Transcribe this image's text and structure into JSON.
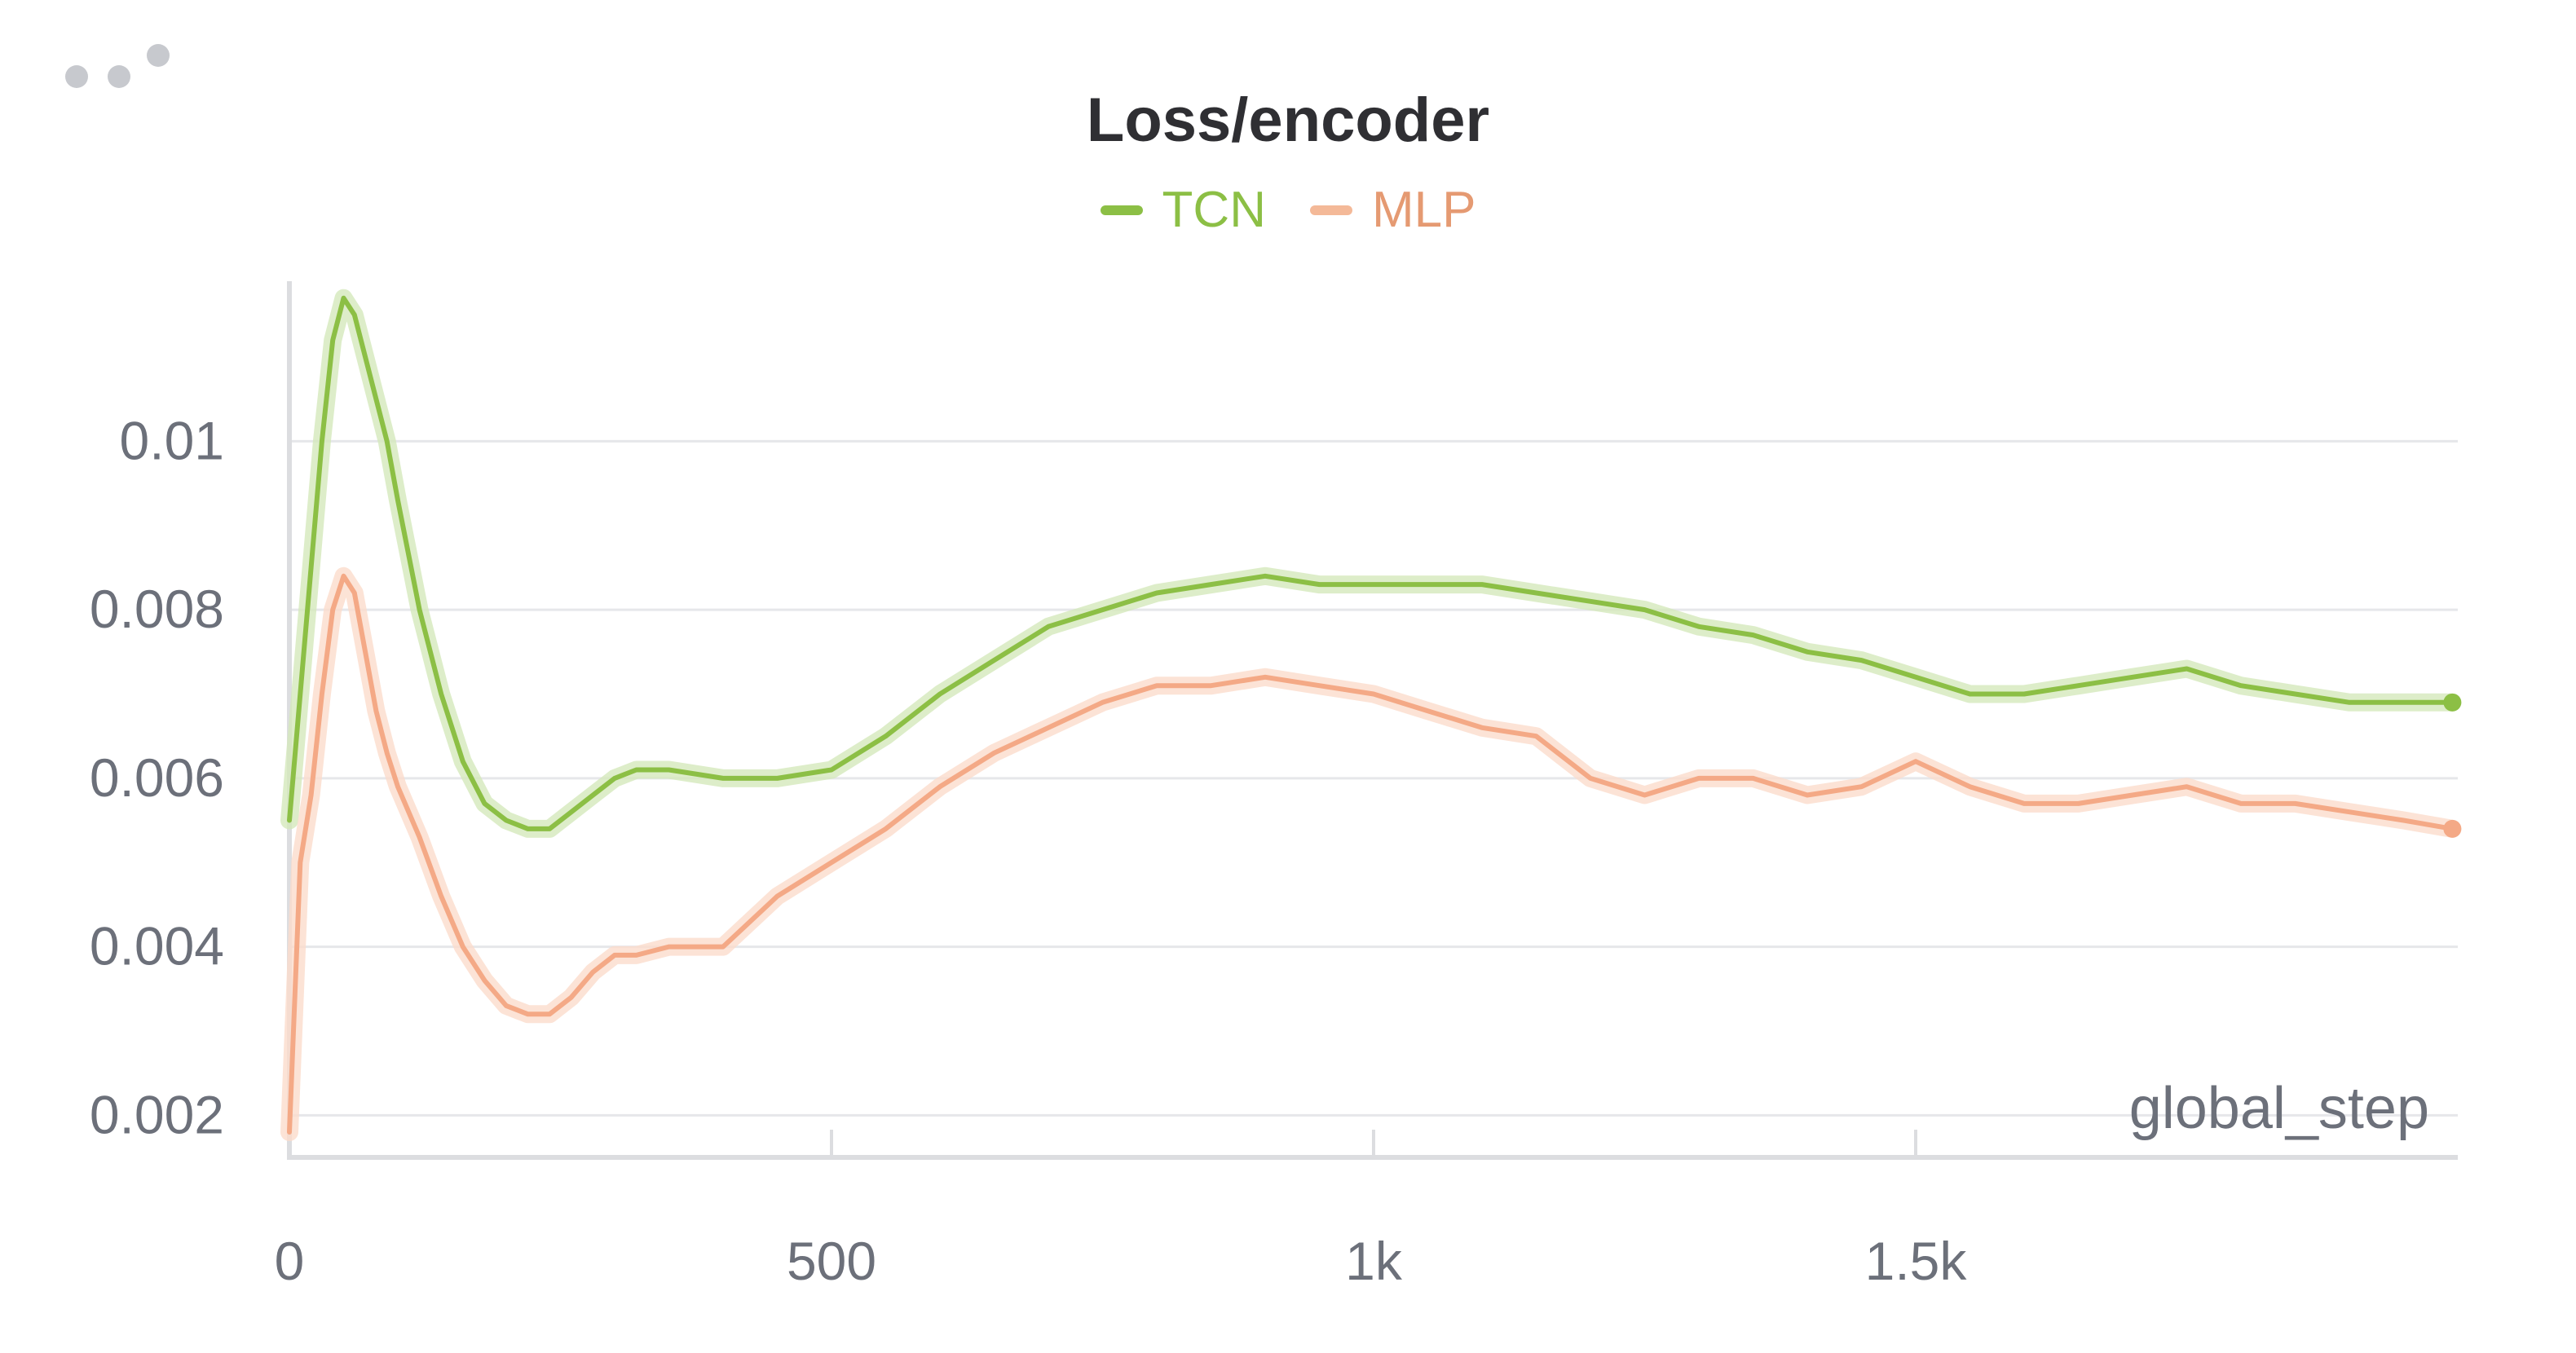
{
  "chart_data": {
    "type": "line",
    "title": "Loss/encoder",
    "xlabel": "global_step",
    "ylabel": "",
    "xlim": [
      0,
      2000
    ],
    "ylim": [
      0.0015,
      0.0119
    ],
    "x_ticks": [
      0,
      500,
      1000,
      1500
    ],
    "x_tick_labels": [
      "0",
      "500",
      "1k",
      "1.5k"
    ],
    "y_ticks": [
      0.002,
      0.004,
      0.006,
      0.008,
      0.01
    ],
    "y_tick_labels": [
      "0.002",
      "0.004",
      "0.006",
      "0.008",
      "0.01"
    ],
    "grid": true,
    "legend_position": "top-center",
    "series": [
      {
        "name": "TCN",
        "color": "#8cbf45",
        "x": [
          0,
          10,
          20,
          30,
          40,
          50,
          60,
          70,
          80,
          90,
          100,
          120,
          140,
          160,
          180,
          200,
          220,
          240,
          260,
          280,
          300,
          320,
          350,
          400,
          450,
          500,
          550,
          600,
          650,
          700,
          750,
          800,
          850,
          900,
          950,
          1000,
          1050,
          1100,
          1150,
          1200,
          1250,
          1300,
          1350,
          1400,
          1450,
          1500,
          1550,
          1600,
          1650,
          1700,
          1750,
          1800,
          1850,
          1900,
          1950,
          1995
        ],
        "values": [
          0.0055,
          0.007,
          0.0085,
          0.01,
          0.0112,
          0.0117,
          0.0115,
          0.011,
          0.0105,
          0.01,
          0.0093,
          0.008,
          0.007,
          0.0062,
          0.0057,
          0.0055,
          0.0054,
          0.0054,
          0.0056,
          0.0058,
          0.006,
          0.0061,
          0.0061,
          0.006,
          0.006,
          0.0061,
          0.0065,
          0.007,
          0.0074,
          0.0078,
          0.008,
          0.0082,
          0.0083,
          0.0084,
          0.0083,
          0.0083,
          0.0083,
          0.0083,
          0.0082,
          0.0081,
          0.008,
          0.0078,
          0.0077,
          0.0075,
          0.0074,
          0.0072,
          0.007,
          0.007,
          0.0071,
          0.0072,
          0.0073,
          0.0071,
          0.007,
          0.0069,
          0.0069,
          0.0069
        ]
      },
      {
        "name": "MLP",
        "color": "#f4a986",
        "x": [
          0,
          10,
          20,
          30,
          40,
          50,
          60,
          70,
          80,
          90,
          100,
          120,
          140,
          160,
          180,
          200,
          220,
          240,
          260,
          280,
          300,
          320,
          350,
          400,
          450,
          500,
          550,
          600,
          650,
          700,
          750,
          800,
          850,
          900,
          950,
          1000,
          1050,
          1100,
          1150,
          1200,
          1250,
          1300,
          1350,
          1400,
          1450,
          1500,
          1550,
          1600,
          1650,
          1700,
          1750,
          1800,
          1850,
          1900,
          1950,
          1995
        ],
        "values": [
          0.0018,
          0.005,
          0.0058,
          0.007,
          0.008,
          0.0084,
          0.0082,
          0.0075,
          0.0068,
          0.0063,
          0.0059,
          0.0053,
          0.0046,
          0.004,
          0.0036,
          0.0033,
          0.0032,
          0.0032,
          0.0034,
          0.0037,
          0.0039,
          0.0039,
          0.004,
          0.004,
          0.0046,
          0.005,
          0.0054,
          0.0059,
          0.0063,
          0.0066,
          0.0069,
          0.0071,
          0.0071,
          0.0072,
          0.0071,
          0.007,
          0.0068,
          0.0066,
          0.0065,
          0.006,
          0.0058,
          0.006,
          0.006,
          0.0058,
          0.0059,
          0.0062,
          0.0059,
          0.0057,
          0.0057,
          0.0058,
          0.0059,
          0.0057,
          0.0057,
          0.0056,
          0.0055,
          0.0054
        ]
      }
    ]
  }
}
